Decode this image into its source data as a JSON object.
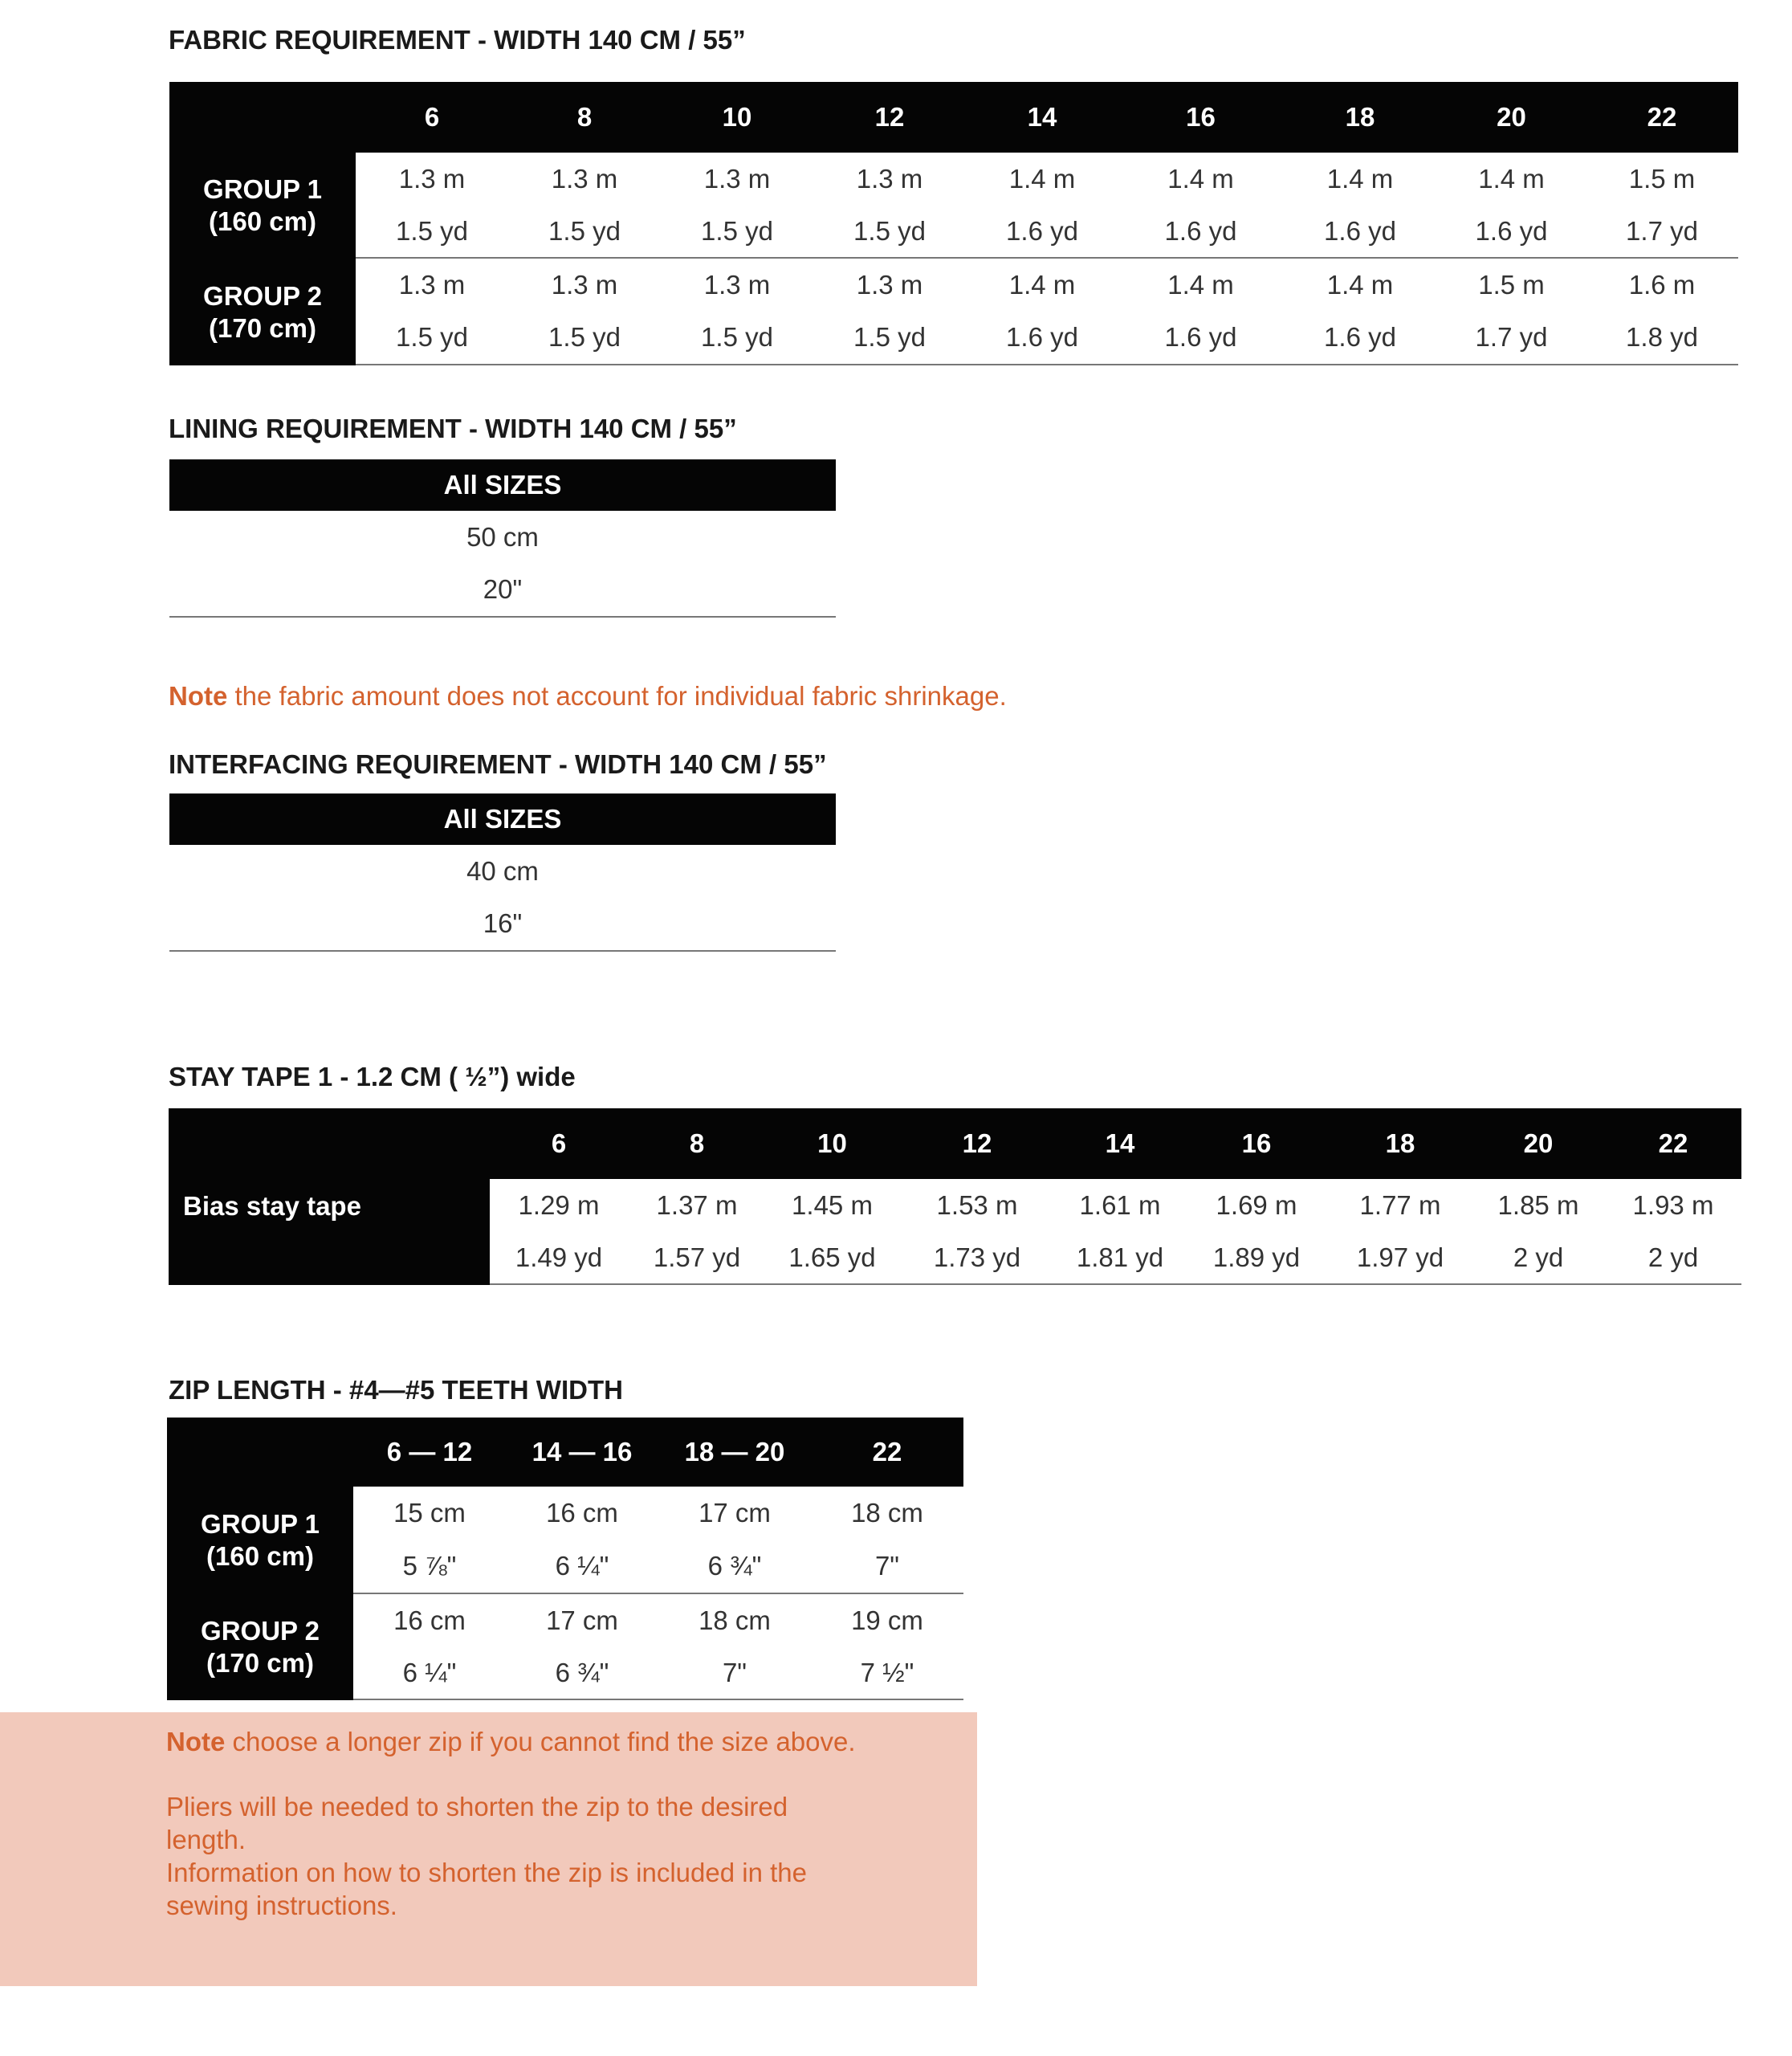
{
  "fabric": {
    "title": "FABRIC REQUIREMENT - WIDTH 140 CM / 55”",
    "sizes": [
      "6",
      "8",
      "10",
      "12",
      "14",
      "16",
      "18",
      "20",
      "22"
    ],
    "rows": [
      {
        "group": "GROUP 1",
        "height": "(160 cm)",
        "m": [
          "1.3 m",
          "1.3 m",
          "1.3 m",
          "1.3 m",
          "1.4 m",
          "1.4 m",
          "1.4 m",
          "1.4 m",
          "1.5 m"
        ],
        "yd": [
          "1.5 yd",
          "1.5 yd",
          "1.5 yd",
          "1.5 yd",
          "1.6 yd",
          "1.6 yd",
          "1.6 yd",
          "1.6 yd",
          "1.7 yd"
        ]
      },
      {
        "group": "GROUP 2",
        "height": "(170 cm)",
        "m": [
          "1.3 m",
          "1.3 m",
          "1.3 m",
          "1.3 m",
          "1.4 m",
          "1.4 m",
          "1.4 m",
          "1.5 m",
          "1.6 m"
        ],
        "yd": [
          "1.5 yd",
          "1.5 yd",
          "1.5 yd",
          "1.5 yd",
          "1.6 yd",
          "1.6 yd",
          "1.6 yd",
          "1.7 yd",
          "1.8 yd"
        ]
      }
    ]
  },
  "lining": {
    "title": "LINING REQUIREMENT  - WIDTH 140 CM / 55”",
    "header": "All SIZES",
    "cm": "50 cm",
    "inch": "20\""
  },
  "note1": {
    "label": "Note",
    "text": " the fabric amount does not account for individual fabric shrinkage."
  },
  "interfacing": {
    "title": "INTERFACING REQUIREMENT - WIDTH 140 CM / 55”",
    "header": "All SIZES",
    "cm": "40 cm",
    "inch": "16\""
  },
  "staytape": {
    "title": "STAY TAPE 1 - 1.2 CM ( ½”)  wide",
    "sizes": [
      "6",
      "8",
      "10",
      "12",
      "14",
      "16",
      "18",
      "20",
      "22"
    ],
    "label": "Bias stay tape",
    "m": [
      "1.29 m",
      "1.37 m",
      "1.45 m",
      "1.53 m",
      "1.61 m",
      "1.69 m",
      "1.77 m",
      "1.85 m",
      "1.93 m"
    ],
    "yd": [
      "1.49 yd",
      "1.57 yd",
      "1.65 yd",
      "1.73 yd",
      "1.81 yd",
      "1.89 yd",
      "1.97 yd",
      "2 yd",
      "2 yd"
    ]
  },
  "zip": {
    "title": "ZIP LENGTH - #4—#5  TEETH WIDTH",
    "sizes": [
      "6 — 12",
      "14 — 16",
      "18 — 20",
      "22"
    ],
    "rows": [
      {
        "group": "GROUP 1",
        "height": "(160 cm)",
        "cm": [
          "15 cm",
          "16 cm",
          "17 cm",
          "18 cm"
        ],
        "inch": [
          "5 ⅞\"",
          "6 ¼\"",
          "6 ¾\"",
          "7\""
        ]
      },
      {
        "group": "GROUP 2",
        "height": "(170 cm)",
        "cm": [
          "16 cm",
          "17 cm",
          "18 cm",
          "19 cm"
        ],
        "inch": [
          "6 ¼\"",
          "6 ¾\"",
          "7\"",
          "7 ½\""
        ]
      }
    ]
  },
  "note2": {
    "label": "Note",
    "text": " choose a longer zip if you cannot find the size above.",
    "line2": "Pliers will be needed to shorten the zip to the desired",
    "line3": "length.",
    "line4": "Information on how to shorten the zip is included in the",
    "line5": "sewing instructions."
  },
  "colors": {
    "accent": "#d4622e",
    "note_bg": "#f2c9bb",
    "header_bg": "#050505"
  }
}
